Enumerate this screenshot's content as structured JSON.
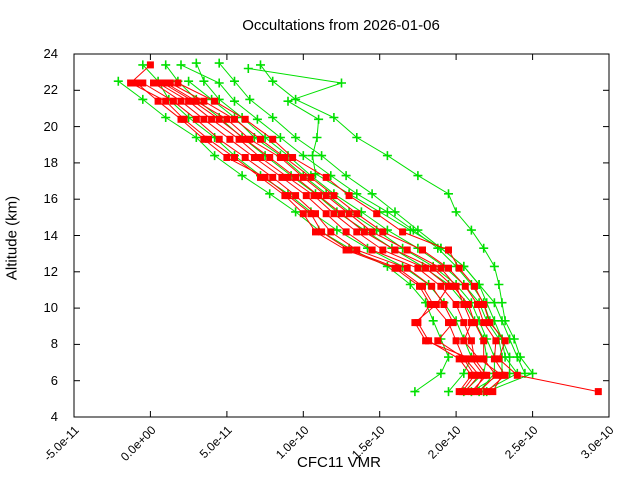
{
  "chart_data": {
    "type": "line",
    "title": "Occultations from 2026-01-06",
    "xlabel": "CFC11 VMR",
    "ylabel": "Altitude (km)",
    "xlim": [
      -5e-11,
      3e-10
    ],
    "ylim": [
      4,
      24
    ],
    "grid": false,
    "legend_position": "none",
    "x_ticks": [
      -5e-11,
      0,
      5e-11,
      1e-10,
      1.5e-10,
      2e-10,
      2.5e-10,
      3e-10
    ],
    "x_tick_labels": [
      "-5.0e-11",
      "0.0e+00",
      "5.0e-11",
      "1.0e-10",
      "1.5e-10",
      "2.0e-10",
      "2.5e-10",
      "3.0e-10"
    ],
    "y_ticks": [
      4,
      6,
      8,
      10,
      12,
      14,
      16,
      18,
      20,
      22,
      24
    ],
    "y_tick_labels": [
      "4",
      "6",
      "8",
      "10",
      "12",
      "14",
      "16",
      "18",
      "20",
      "22",
      "24"
    ],
    "colors": {
      "red_series": "#ff0000",
      "green_series": "#00e000",
      "border": "#000000",
      "text": "#000000",
      "background": "#ffffff"
    },
    "vmr_scale": 1e-10,
    "series": [
      {
        "name": "profile-01",
        "color": "red",
        "marker": "square",
        "altitudes": [
          23.4,
          22.4,
          21.4,
          20.4,
          19.3,
          18.3,
          17.2,
          16.2,
          15.2,
          14.2,
          13.2,
          12.2,
          11.2,
          10.2,
          9.2,
          8.2,
          7.2,
          6.3,
          5.4
        ],
        "vmr": [
          0.0,
          -0.13,
          0.1,
          0.22,
          0.38,
          0.55,
          0.72,
          0.88,
          1.0,
          1.08,
          1.28,
          1.6,
          1.76,
          1.83,
          1.75,
          1.82,
          2.02,
          2.1,
          2.02
        ]
      },
      {
        "name": "profile-02",
        "color": "red",
        "marker": "square",
        "altitudes": [
          22.4,
          21.4,
          20.4,
          19.3,
          18.3,
          17.2,
          16.2,
          15.2,
          14.2,
          13.2,
          12.2,
          11.2,
          10.2,
          9.2,
          8.2,
          7.2,
          6.3,
          5.4
        ],
        "vmr": [
          -0.05,
          0.15,
          0.3,
          0.45,
          0.62,
          0.8,
          0.95,
          1.08,
          1.18,
          1.35,
          1.68,
          1.84,
          1.92,
          1.98,
          1.88,
          2.06,
          2.15,
          2.06
        ]
      },
      {
        "name": "profile-03",
        "color": "red",
        "marker": "square",
        "altitudes": [
          22.4,
          21.4,
          20.4,
          19.3,
          18.3,
          17.2,
          16.2,
          15.2,
          14.2,
          13.2,
          12.2,
          11.2,
          10.2,
          9.2,
          8.2,
          7.2,
          6.3,
          5.4
        ],
        "vmr": [
          0.02,
          0.2,
          0.35,
          0.52,
          0.68,
          0.86,
          1.02,
          1.15,
          1.28,
          1.45,
          1.75,
          1.9,
          2.0,
          2.05,
          2.1,
          2.12,
          2.2,
          2.1
        ]
      },
      {
        "name": "profile-04",
        "color": "red",
        "marker": "square",
        "altitudes": [
          22.4,
          21.4,
          20.4,
          19.3,
          18.3,
          17.2,
          16.2,
          15.2,
          14.2,
          13.2,
          12.2,
          11.2,
          10.2,
          9.2,
          8.2,
          7.2,
          6.3,
          5.4
        ],
        "vmr": [
          0.08,
          0.28,
          0.45,
          0.62,
          0.78,
          0.95,
          1.1,
          1.25,
          1.4,
          1.6,
          1.85,
          1.98,
          2.08,
          2.12,
          2.18,
          2.18,
          2.26,
          2.15
        ]
      },
      {
        "name": "profile-05",
        "color": "red",
        "marker": "square",
        "altitudes": [
          22.4,
          21.4,
          20.4,
          19.3,
          18.3,
          17.2,
          16.2,
          15.2,
          14.2,
          13.2,
          12.2,
          11.2,
          10.2,
          9.2,
          8.2,
          7.2,
          6.3,
          5.4
        ],
        "vmr": [
          0.13,
          0.35,
          0.55,
          0.72,
          0.88,
          1.05,
          1.2,
          1.35,
          1.52,
          1.78,
          1.95,
          2.06,
          2.14,
          2.18,
          2.26,
          2.25,
          2.32,
          2.2
        ]
      },
      {
        "name": "profile-06",
        "color": "red",
        "marker": "square",
        "altitudes": [
          22.4,
          21.4,
          20.4,
          19.3,
          18.3,
          17.2,
          16.2,
          15.2,
          14.2,
          13.2,
          12.2,
          11.2,
          10.2,
          9.2,
          8.2,
          7.2,
          6.3,
          5.4
        ],
        "vmr": [
          0.18,
          0.42,
          0.62,
          0.8,
          0.93,
          1.15,
          1.3,
          1.48,
          1.65,
          1.95,
          2.02,
          2.12,
          2.18,
          2.22,
          2.32,
          2.28,
          2.4,
          2.93
        ]
      },
      {
        "name": "profile-07",
        "color": "red",
        "marker": "square",
        "altitudes": [
          22.4,
          21.4,
          20.4,
          19.3,
          18.3,
          17.2,
          16.2,
          15.2,
          14.2,
          13.2,
          12.2,
          11.2,
          10.2,
          9.2,
          8.2,
          7.2,
          6.3,
          5.4
        ],
        "vmr": [
          0.1,
          0.3,
          0.5,
          0.65,
          0.85,
          1.0,
          1.15,
          1.3,
          1.45,
          1.68,
          1.9,
          2.0,
          2.05,
          2.1,
          2.05,
          2.15,
          2.3,
          2.24
        ]
      },
      {
        "name": "profile-08",
        "color": "red",
        "marker": "square",
        "altitudes": [
          22.4,
          21.4,
          20.4,
          19.3,
          18.3,
          17.2,
          16.2,
          15.2,
          14.2,
          13.2,
          12.2,
          11.2,
          10.2,
          9.2,
          8.2,
          7.2,
          6.3,
          5.4
        ],
        "vmr": [
          0.05,
          0.25,
          0.4,
          0.58,
          0.72,
          0.9,
          1.07,
          1.2,
          1.35,
          1.52,
          1.8,
          1.95,
          1.87,
          1.73,
          1.8,
          2.1,
          2.18,
          2.12
        ]
      },
      {
        "name": "profile-09",
        "color": "red",
        "marker": "square",
        "altitudes": [
          22.4,
          21.4,
          20.4,
          19.3,
          18.3,
          17.2,
          16.2,
          15.2,
          14.2,
          13.2,
          12.2,
          11.2,
          10.2,
          9.2,
          8.2,
          7.2,
          6.3,
          5.4
        ],
        "vmr": [
          -0.09,
          0.05,
          0.2,
          0.35,
          0.5,
          0.75,
          0.9,
          1.05,
          1.12,
          1.3,
          1.62,
          1.78,
          1.85,
          1.95,
          2.0,
          2.05,
          2.12,
          2.04
        ]
      },
      {
        "name": "profile-10",
        "color": "green",
        "marker": "plus",
        "altitudes": [
          22.5,
          21.5,
          20.5,
          19.4,
          18.4,
          17.3,
          16.3,
          15.3,
          14.3,
          13.3,
          12.3,
          11.3,
          10.3,
          9.3,
          8.3,
          7.3,
          6.4,
          5.4
        ],
        "vmr": [
          -0.21,
          -0.05,
          0.1,
          0.3,
          0.42,
          0.6,
          0.78,
          0.95,
          1.1,
          1.3,
          1.55,
          1.7,
          1.8,
          1.85,
          1.9,
          1.95,
          1.9,
          1.73
        ]
      },
      {
        "name": "profile-11",
        "color": "green",
        "marker": "plus",
        "altitudes": [
          23.4,
          22.5,
          21.5,
          20.5,
          19.4,
          18.4,
          17.3,
          16.3,
          15.3,
          14.3,
          13.3,
          12.3,
          11.3,
          10.3,
          9.3,
          8.3,
          7.3,
          6.4,
          5.4
        ],
        "vmr": [
          -0.05,
          0.05,
          0.12,
          0.25,
          0.42,
          0.55,
          0.72,
          0.9,
          1.05,
          1.22,
          1.42,
          1.65,
          1.82,
          1.92,
          2.0,
          2.05,
          2.1,
          2.05,
          1.95
        ]
      },
      {
        "name": "profile-12",
        "color": "green",
        "marker": "plus",
        "altitudes": [
          23.4,
          22.5,
          21.5,
          20.5,
          19.4,
          18.4,
          17.3,
          16.3,
          15.3,
          14.3,
          13.3,
          12.3,
          11.3,
          10.3,
          9.3,
          8.3,
          7.3,
          6.4,
          5.4
        ],
        "vmr": [
          0.1,
          0.18,
          0.3,
          0.45,
          0.6,
          0.75,
          0.92,
          1.08,
          1.22,
          1.4,
          1.58,
          1.78,
          1.95,
          2.05,
          2.12,
          2.18,
          2.2,
          2.18,
          2.05
        ]
      },
      {
        "name": "profile-13",
        "color": "green",
        "marker": "plus",
        "altitudes": [
          23.5,
          22.5,
          21.5,
          20.5,
          19.4,
          18.4,
          17.3,
          16.3,
          15.3,
          14.3,
          13.3,
          12.3,
          11.3,
          10.3,
          9.3,
          8.3,
          7.3,
          6.4,
          5.4
        ],
        "vmr": [
          0.3,
          0.35,
          0.45,
          0.6,
          0.75,
          0.9,
          1.05,
          1.2,
          1.38,
          1.55,
          1.75,
          1.92,
          2.05,
          2.15,
          2.2,
          2.28,
          2.3,
          2.3,
          2.1
        ]
      },
      {
        "name": "profile-14",
        "color": "green",
        "marker": "plus",
        "altitudes": [
          23.5,
          22.5,
          21.5,
          20.5,
          19.4,
          18.4,
          17.3,
          16.3,
          15.3,
          14.3,
          13.3,
          12.3,
          11.3,
          10.3,
          9.3,
          8.3,
          7.3,
          6.4
        ],
        "vmr": [
          0.45,
          0.55,
          0.65,
          0.8,
          0.95,
          1.12,
          1.28,
          1.45,
          1.6,
          1.75,
          1.9,
          2.05,
          2.15,
          2.25,
          2.3,
          2.35,
          2.4,
          2.45
        ]
      },
      {
        "name": "profile-15",
        "color": "green",
        "marker": "plus",
        "altitudes": [
          23.2,
          22.4,
          21.4,
          20.4,
          19.4,
          18.4,
          17.4,
          16.3,
          15.3,
          14.3,
          13.3,
          12.3,
          11.3,
          10.3,
          9.3,
          8.3,
          7.3,
          6.4
        ],
        "vmr": [
          0.64,
          1.25,
          0.9,
          1.1,
          1.09,
          1.06,
          1.08,
          1.3,
          1.5,
          1.7,
          1.9,
          2.05,
          2.15,
          2.2,
          2.25,
          2.3,
          2.35,
          2.35
        ]
      },
      {
        "name": "profile-16",
        "color": "green",
        "marker": "plus",
        "altitudes": [
          23.4,
          22.5,
          21.5,
          20.5,
          19.4,
          18.4,
          17.3,
          16.3,
          15.3,
          14.3,
          13.3,
          12.3,
          11.3,
          10.3,
          9.3,
          8.3,
          7.3,
          6.4,
          5.4
        ],
        "vmr": [
          0.72,
          0.8,
          0.95,
          1.2,
          1.35,
          1.55,
          1.75,
          1.95,
          2.0,
          2.1,
          2.18,
          2.25,
          2.28,
          2.3,
          2.32,
          2.38,
          2.42,
          2.5,
          2.2
        ]
      },
      {
        "name": "profile-17",
        "color": "green",
        "marker": "plus",
        "altitudes": [
          22.5,
          21.5,
          20.5,
          19.4,
          18.4,
          17.3,
          16.3,
          15.3,
          14.3,
          13.3,
          12.3,
          11.3,
          10.3,
          9.3,
          8.3,
          7.3,
          6.4,
          5.4
        ],
        "vmr": [
          0.25,
          0.4,
          0.55,
          0.68,
          0.85,
          1.0,
          1.15,
          1.3,
          1.48,
          1.65,
          1.85,
          2.0,
          2.1,
          2.15,
          2.2,
          2.25,
          2.25,
          2.15
        ]
      },
      {
        "name": "profile-18",
        "color": "green",
        "marker": "plus",
        "altitudes": [
          23.4,
          22.4,
          21.4,
          20.4,
          19.4,
          18.4,
          17.3,
          16.3,
          15.3,
          14.3,
          13.3,
          12.3,
          11.3,
          10.3,
          9.3,
          8.3,
          7.3,
          6.4,
          5.4
        ],
        "vmr": [
          0.2,
          0.45,
          0.55,
          0.7,
          0.85,
          1.0,
          1.18,
          1.35,
          1.55,
          1.72,
          1.88,
          2.0,
          2.1,
          2.18,
          2.22,
          2.3,
          2.32,
          2.4,
          2.18
        ]
      }
    ]
  }
}
